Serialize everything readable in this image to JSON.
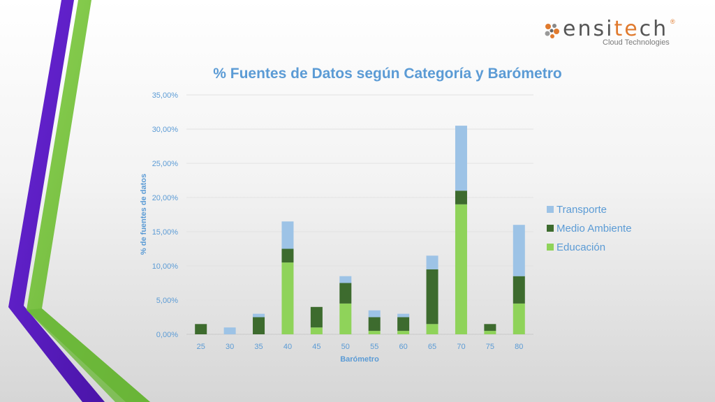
{
  "logo": {
    "word_prefix": "ensi",
    "word_highlight": "te",
    "word_suffix": "ch",
    "registered": "®",
    "tagline": "Cloud Technologies"
  },
  "colors": {
    "purple": "#5d1ec7",
    "green": "#7ac142",
    "title": "#5b9bd5",
    "transporte": "#9dc3e6",
    "medio_ambiente": "#3d6b2e",
    "educacion": "#8fd35a"
  },
  "chart_data": {
    "type": "bar",
    "stacked": true,
    "title": "% Fuentes de Datos según Categoría y Barómetro",
    "xlabel": "Barómetro",
    "ylabel": "% de fuentes de datos",
    "categories": [
      "25",
      "30",
      "35",
      "40",
      "45",
      "50",
      "55",
      "60",
      "65",
      "70",
      "75",
      "80"
    ],
    "ylim": [
      0,
      35
    ],
    "yticks": [
      "0,00%",
      "5,00%",
      "10,00%",
      "15,00%",
      "20,00%",
      "25,00%",
      "30,00%",
      "35,00%"
    ],
    "grid": true,
    "legend_position": "right",
    "series": [
      {
        "name": "Educación",
        "values": [
          0,
          0,
          0,
          10.5,
          1,
          4.5,
          0.5,
          0.5,
          1.5,
          19,
          0.5,
          4.5
        ]
      },
      {
        "name": "Medio Ambiente",
        "values": [
          1.5,
          0,
          2.5,
          2,
          3,
          3,
          2,
          2,
          8,
          2,
          1,
          4
        ]
      },
      {
        "name": "Transporte",
        "values": [
          0,
          1,
          0.5,
          4,
          0,
          1,
          1,
          0.5,
          2,
          9.5,
          0,
          7.5
        ]
      }
    ],
    "legend": [
      "Transporte",
      "Medio Ambiente",
      "Educación"
    ]
  }
}
